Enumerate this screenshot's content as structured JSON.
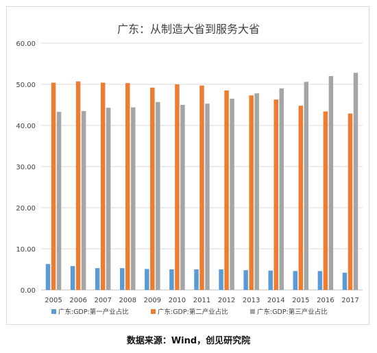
{
  "source_note": "数据来源：Wind，创见研究院",
  "chart_data": {
    "type": "bar",
    "title": "广东：从制造大省到服务大省",
    "xlabel": "",
    "ylabel": "",
    "ylim": [
      0,
      60
    ],
    "y_ticks": [
      "0.00",
      "10.00",
      "20.00",
      "30.00",
      "40.00",
      "50.00",
      "60.00"
    ],
    "grid": true,
    "legend_position": "bottom",
    "categories": [
      "2005",
      "2006",
      "2007",
      "2008",
      "2009",
      "2010",
      "2011",
      "2012",
      "2013",
      "2014",
      "2015",
      "2016",
      "2017"
    ],
    "series": [
      {
        "name": "广东:GDP:第一产业占比",
        "color": "#5b9bd5",
        "values": [
          6.3,
          5.8,
          5.3,
          5.3,
          5.1,
          5.0,
          5.0,
          5.0,
          4.8,
          4.7,
          4.6,
          4.6,
          4.2
        ]
      },
      {
        "name": "广东:GDP:第二产业占比",
        "color": "#ed7d31",
        "values": [
          50.4,
          50.7,
          50.4,
          50.3,
          49.2,
          50.0,
          49.7,
          48.5,
          47.3,
          46.3,
          44.8,
          43.4,
          42.9
        ]
      },
      {
        "name": "广东:GDP:第三产业占比",
        "color": "#a5a5a5",
        "values": [
          43.3,
          43.5,
          44.3,
          44.4,
          45.7,
          45.0,
          45.3,
          46.5,
          47.8,
          49.0,
          50.6,
          52.0,
          52.8
        ]
      }
    ]
  }
}
